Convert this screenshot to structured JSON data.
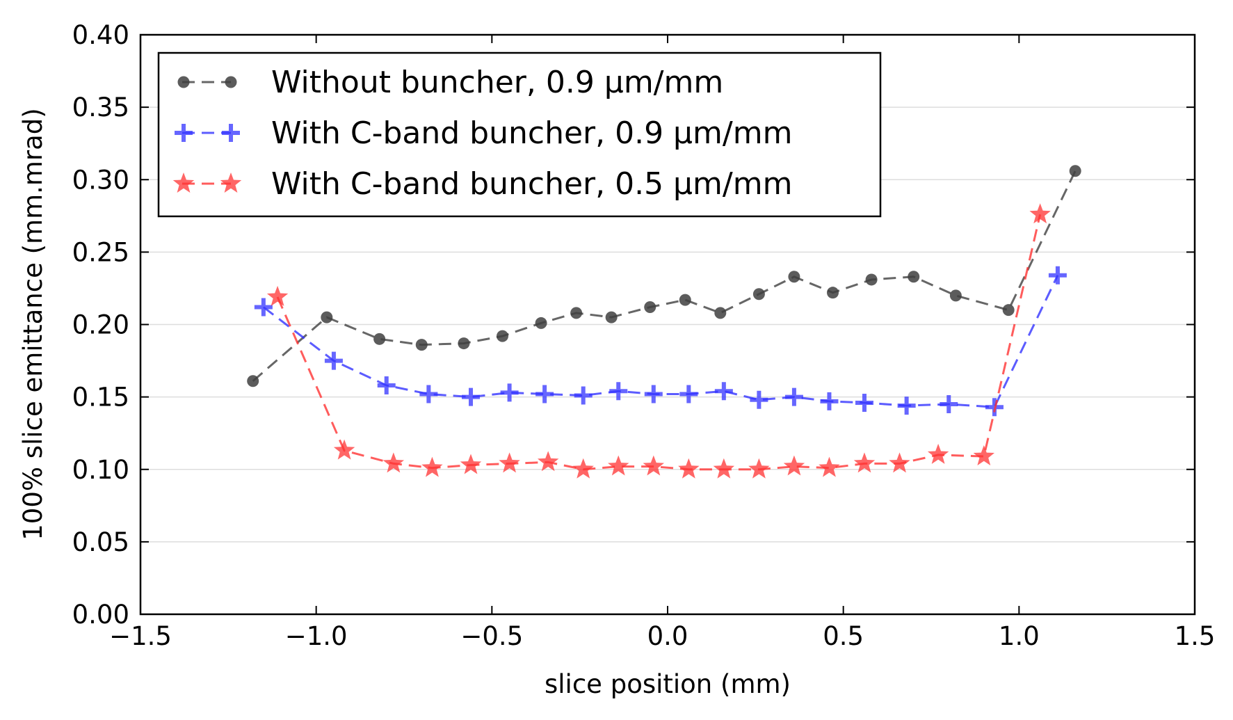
{
  "chart_data": {
    "type": "line",
    "title": "",
    "xlabel": "slice position (mm)",
    "ylabel": "100% slice emittance (mm.mrad)",
    "xlim": [
      -1.5,
      1.5
    ],
    "ylim": [
      0.0,
      0.4
    ],
    "xticks": [
      -1.5,
      -1.0,
      -0.5,
      0.0,
      0.5,
      1.0,
      1.5
    ],
    "xtick_labels": [
      "−1.5",
      "−1.0",
      "−0.5",
      "0.0",
      "0.5",
      "1.0",
      "1.5"
    ],
    "yticks": [
      0.0,
      0.05,
      0.1,
      0.15,
      0.2,
      0.25,
      0.3,
      0.35,
      0.4
    ],
    "ytick_labels": [
      "0.00",
      "0.05",
      "0.10",
      "0.15",
      "0.20",
      "0.25",
      "0.30",
      "0.35",
      "0.40"
    ],
    "grid": "horizontal",
    "legend_position": "top-left",
    "series": [
      {
        "name": "Without buncher, 0.9 µm/mm",
        "color": "#404040",
        "marker": "circle",
        "x": [
          -1.18,
          -0.97,
          -0.82,
          -0.7,
          -0.58,
          -0.47,
          -0.36,
          -0.26,
          -0.16,
          -0.05,
          0.05,
          0.15,
          0.26,
          0.36,
          0.47,
          0.58,
          0.7,
          0.82,
          0.97,
          1.16
        ],
        "y": [
          0.161,
          0.205,
          0.19,
          0.186,
          0.187,
          0.192,
          0.201,
          0.208,
          0.205,
          0.212,
          0.217,
          0.208,
          0.221,
          0.233,
          0.222,
          0.231,
          0.233,
          0.22,
          0.21,
          0.306
        ]
      },
      {
        "name": "With C-band buncher, 0.9 µm/mm",
        "color": "#3333ff",
        "marker": "plus",
        "x": [
          -1.15,
          -0.95,
          -0.8,
          -0.68,
          -0.56,
          -0.45,
          -0.35,
          -0.24,
          -0.14,
          -0.04,
          0.06,
          0.16,
          0.26,
          0.36,
          0.46,
          0.56,
          0.68,
          0.8,
          0.93,
          1.11
        ],
        "y": [
          0.212,
          0.175,
          0.158,
          0.152,
          0.15,
          0.153,
          0.152,
          0.151,
          0.154,
          0.152,
          0.152,
          0.154,
          0.148,
          0.15,
          0.147,
          0.146,
          0.144,
          0.145,
          0.143,
          0.234
        ]
      },
      {
        "name": "With C-band buncher, 0.5 µm/mm",
        "color": "#ff3333",
        "marker": "star",
        "x": [
          -1.11,
          -0.92,
          -0.78,
          -0.67,
          -0.56,
          -0.45,
          -0.34,
          -0.24,
          -0.14,
          -0.04,
          0.06,
          0.16,
          0.26,
          0.36,
          0.46,
          0.56,
          0.66,
          0.77,
          0.9,
          1.06
        ],
        "y": [
          0.219,
          0.113,
          0.104,
          0.101,
          0.103,
          0.104,
          0.105,
          0.1,
          0.102,
          0.102,
          0.1,
          0.1,
          0.1,
          0.102,
          0.101,
          0.104,
          0.104,
          0.11,
          0.109,
          0.276
        ]
      }
    ]
  }
}
